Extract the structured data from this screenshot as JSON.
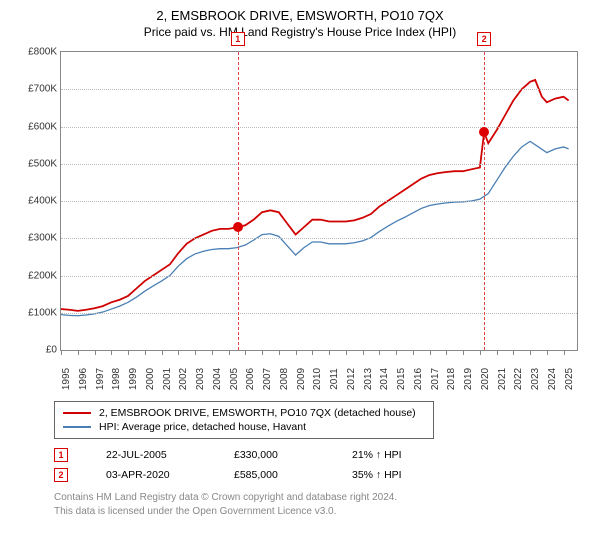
{
  "title": "2, EMSBROOK DRIVE, EMSWORTH, PO10 7QX",
  "subtitle": "Price paid vs. HM Land Registry's House Price Index (HPI)",
  "chart": {
    "type": "line",
    "background_color": "#ffffff",
    "grid_color": "#bbbbbb",
    "axis_color": "#888888",
    "xlim": [
      1995,
      2025.8
    ],
    "ylim": [
      0,
      800000
    ],
    "yticks": [
      0,
      100000,
      200000,
      300000,
      400000,
      500000,
      600000,
      700000,
      800000
    ],
    "ytick_labels": [
      "£0",
      "£100K",
      "£200K",
      "£300K",
      "£400K",
      "£500K",
      "£600K",
      "£700K",
      "£800K"
    ],
    "xticks": [
      1995,
      1996,
      1997,
      1998,
      1999,
      2000,
      2001,
      2002,
      2003,
      2004,
      2005,
      2006,
      2007,
      2008,
      2009,
      2010,
      2011,
      2012,
      2013,
      2014,
      2015,
      2016,
      2017,
      2018,
      2019,
      2020,
      2021,
      2022,
      2023,
      2024,
      2025
    ],
    "series": [
      {
        "name": "2, EMSBROOK DRIVE, EMSWORTH, PO10 7QX (detached house)",
        "color": "#d00000",
        "line_width": 1.8,
        "data": [
          [
            1995,
            110000
          ],
          [
            1995.5,
            108000
          ],
          [
            1996,
            105000
          ],
          [
            1996.5,
            108000
          ],
          [
            1997,
            112000
          ],
          [
            1997.5,
            118000
          ],
          [
            1998,
            128000
          ],
          [
            1998.5,
            135000
          ],
          [
            1999,
            145000
          ],
          [
            1999.5,
            165000
          ],
          [
            2000,
            185000
          ],
          [
            2000.5,
            200000
          ],
          [
            2001,
            215000
          ],
          [
            2001.5,
            230000
          ],
          [
            2002,
            260000
          ],
          [
            2002.5,
            285000
          ],
          [
            2003,
            300000
          ],
          [
            2003.5,
            310000
          ],
          [
            2004,
            320000
          ],
          [
            2004.5,
            325000
          ],
          [
            2005,
            325000
          ],
          [
            2005.55,
            330000
          ],
          [
            2006,
            335000
          ],
          [
            2006.5,
            350000
          ],
          [
            2007,
            370000
          ],
          [
            2007.5,
            375000
          ],
          [
            2008,
            370000
          ],
          [
            2008.5,
            340000
          ],
          [
            2009,
            310000
          ],
          [
            2009.5,
            330000
          ],
          [
            2010,
            350000
          ],
          [
            2010.5,
            350000
          ],
          [
            2011,
            345000
          ],
          [
            2011.5,
            345000
          ],
          [
            2012,
            345000
          ],
          [
            2012.5,
            348000
          ],
          [
            2013,
            355000
          ],
          [
            2013.5,
            365000
          ],
          [
            2014,
            385000
          ],
          [
            2014.5,
            400000
          ],
          [
            2015,
            415000
          ],
          [
            2015.5,
            430000
          ],
          [
            2016,
            445000
          ],
          [
            2016.5,
            460000
          ],
          [
            2017,
            470000
          ],
          [
            2017.5,
            475000
          ],
          [
            2018,
            478000
          ],
          [
            2018.5,
            480000
          ],
          [
            2019,
            480000
          ],
          [
            2019.5,
            485000
          ],
          [
            2020,
            490000
          ],
          [
            2020.26,
            585000
          ],
          [
            2020.5,
            555000
          ],
          [
            2021,
            590000
          ],
          [
            2021.5,
            630000
          ],
          [
            2022,
            670000
          ],
          [
            2022.5,
            700000
          ],
          [
            2023,
            720000
          ],
          [
            2023.3,
            725000
          ],
          [
            2023.7,
            680000
          ],
          [
            2024,
            665000
          ],
          [
            2024.5,
            675000
          ],
          [
            2025,
            680000
          ],
          [
            2025.3,
            670000
          ]
        ]
      },
      {
        "name": "HPI: Average price, detached house, Havant",
        "color": "#4a7fb5",
        "line_width": 1.3,
        "data": [
          [
            1995,
            95000
          ],
          [
            1995.5,
            93000
          ],
          [
            1996,
            92000
          ],
          [
            1996.5,
            94000
          ],
          [
            1997,
            97000
          ],
          [
            1997.5,
            102000
          ],
          [
            1998,
            110000
          ],
          [
            1998.5,
            118000
          ],
          [
            1999,
            128000
          ],
          [
            1999.5,
            142000
          ],
          [
            2000,
            158000
          ],
          [
            2000.5,
            172000
          ],
          [
            2001,
            185000
          ],
          [
            2001.5,
            200000
          ],
          [
            2002,
            225000
          ],
          [
            2002.5,
            245000
          ],
          [
            2003,
            258000
          ],
          [
            2003.5,
            265000
          ],
          [
            2004,
            270000
          ],
          [
            2004.5,
            272000
          ],
          [
            2005,
            272000
          ],
          [
            2005.5,
            275000
          ],
          [
            2006,
            282000
          ],
          [
            2006.5,
            295000
          ],
          [
            2007,
            310000
          ],
          [
            2007.5,
            312000
          ],
          [
            2008,
            305000
          ],
          [
            2008.5,
            280000
          ],
          [
            2009,
            255000
          ],
          [
            2009.5,
            275000
          ],
          [
            2010,
            290000
          ],
          [
            2010.5,
            290000
          ],
          [
            2011,
            285000
          ],
          [
            2011.5,
            285000
          ],
          [
            2012,
            285000
          ],
          [
            2012.5,
            288000
          ],
          [
            2013,
            293000
          ],
          [
            2013.5,
            302000
          ],
          [
            2014,
            318000
          ],
          [
            2014.5,
            332000
          ],
          [
            2015,
            345000
          ],
          [
            2015.5,
            356000
          ],
          [
            2016,
            368000
          ],
          [
            2016.5,
            380000
          ],
          [
            2017,
            388000
          ],
          [
            2017.5,
            392000
          ],
          [
            2018,
            395000
          ],
          [
            2018.5,
            397000
          ],
          [
            2019,
            398000
          ],
          [
            2019.5,
            400000
          ],
          [
            2020,
            405000
          ],
          [
            2020.5,
            420000
          ],
          [
            2021,
            455000
          ],
          [
            2021.5,
            490000
          ],
          [
            2022,
            520000
          ],
          [
            2022.5,
            545000
          ],
          [
            2023,
            560000
          ],
          [
            2023.5,
            545000
          ],
          [
            2024,
            530000
          ],
          [
            2024.5,
            540000
          ],
          [
            2025,
            545000
          ],
          [
            2025.3,
            540000
          ]
        ]
      }
    ],
    "markers": [
      {
        "id": "1",
        "x": 2005.55,
        "y": 330000
      },
      {
        "id": "2",
        "x": 2020.26,
        "y": 585000
      }
    ],
    "label_fontsize": 10,
    "title_fontsize": 13
  },
  "legend": {
    "items": [
      {
        "color": "#d00000",
        "label": "2, EMSBROOK DRIVE, EMSWORTH, PO10 7QX (detached house)"
      },
      {
        "color": "#4a7fb5",
        "label": "HPI: Average price, detached house, Havant"
      }
    ]
  },
  "sales": [
    {
      "num": "1",
      "date": "22-JUL-2005",
      "price": "£330,000",
      "delta": "21% ↑ HPI"
    },
    {
      "num": "2",
      "date": "03-APR-2020",
      "price": "£585,000",
      "delta": "35% ↑ HPI"
    }
  ],
  "footnote_line1": "Contains HM Land Registry data © Crown copyright and database right 2024.",
  "footnote_line2": "This data is licensed under the Open Government Licence v3.0.",
  "colors": {
    "marker_border": "#d00000",
    "footnote": "#888888"
  }
}
